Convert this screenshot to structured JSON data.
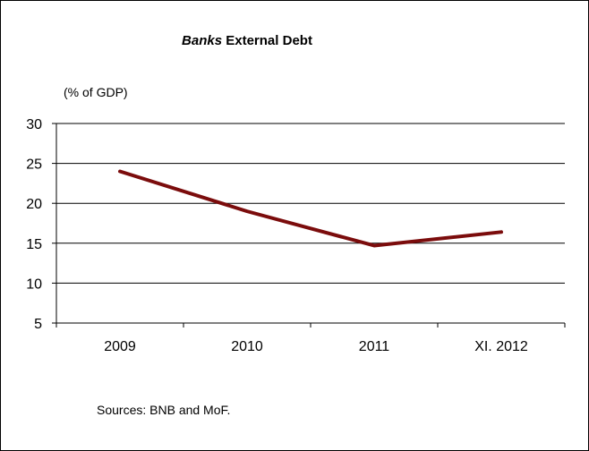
{
  "chart_data": {
    "type": "line",
    "title_italic": "Banks",
    "title_rest": " External Debt",
    "unit_label": "(% of GDP)",
    "categories": [
      "2009",
      "2010",
      "2011",
      "XI. 2012"
    ],
    "series": [
      {
        "values": [
          24.0,
          19.0,
          14.7,
          16.4
        ],
        "color": "#7b0c0c"
      }
    ],
    "ylim": [
      5,
      30
    ],
    "yticks": [
      5,
      10,
      15,
      20,
      25,
      30
    ],
    "grid": true,
    "source": "Sources: BNB and MoF."
  }
}
